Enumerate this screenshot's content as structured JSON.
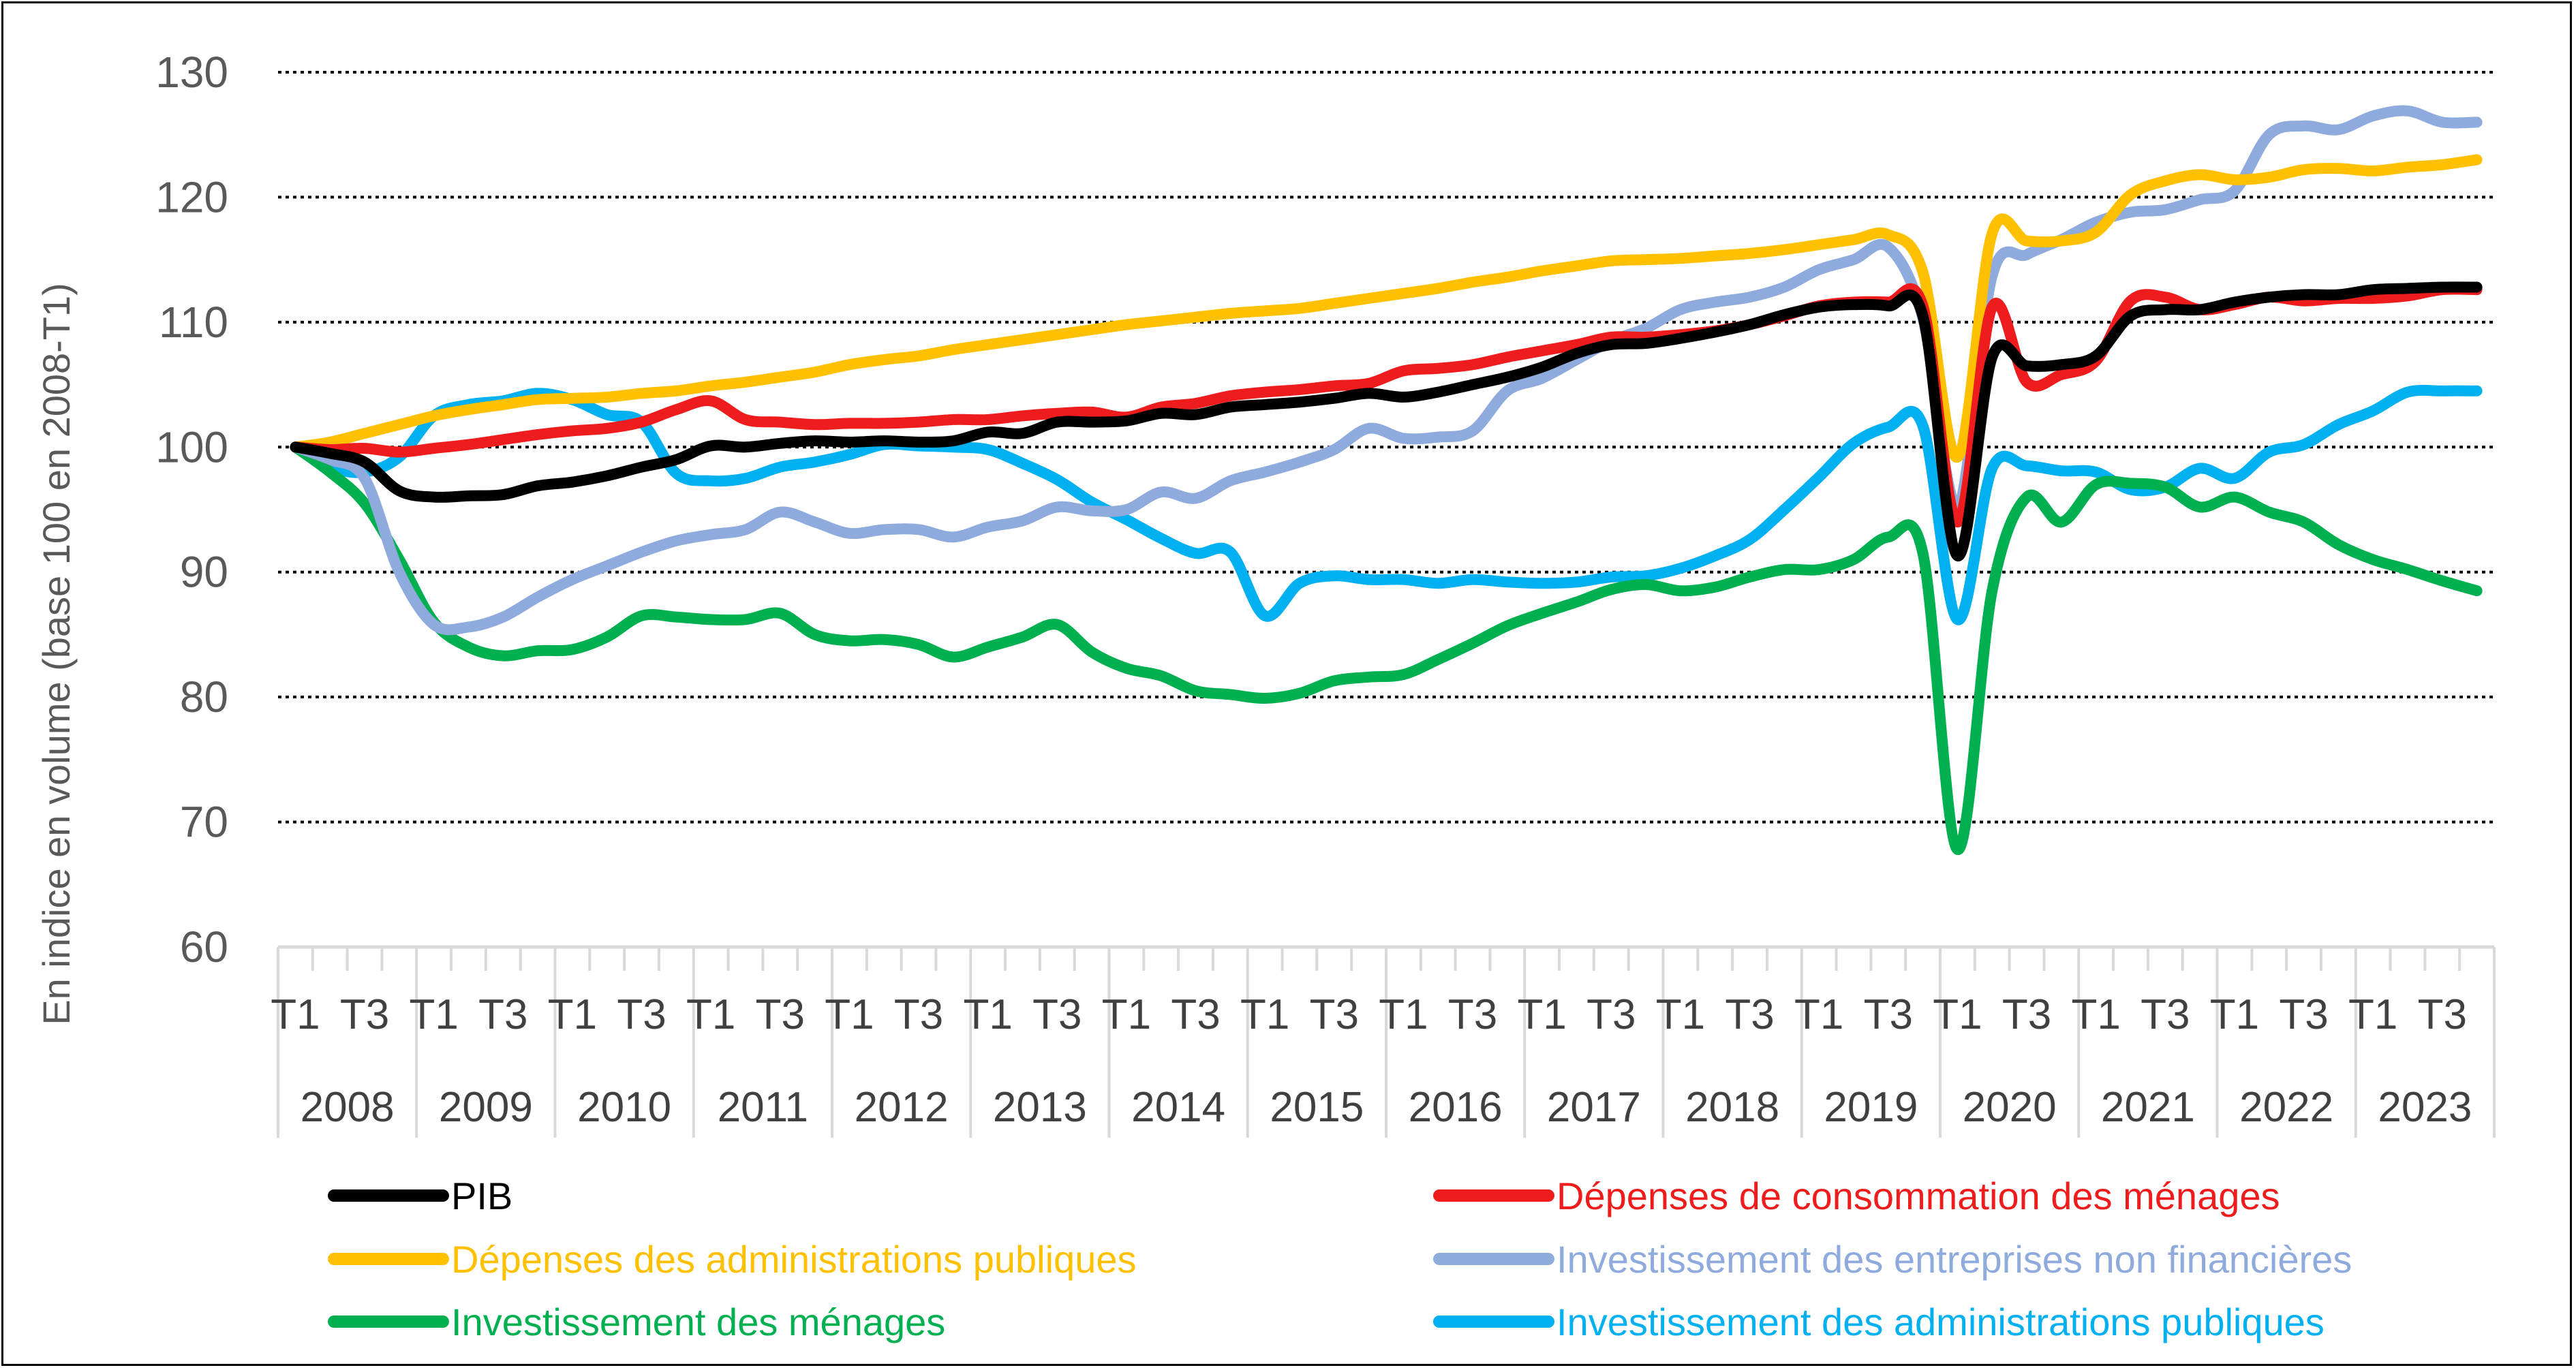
{
  "chart_data": {
    "type": "line",
    "ylabel": "En indice en volume (base 100 en 2008-T1)",
    "ylim": [
      60,
      130
    ],
    "yticks": [
      60,
      70,
      80,
      90,
      100,
      110,
      120,
      130
    ],
    "grid": "horizontal dotted",
    "legend_position": "bottom",
    "years": [
      "2008",
      "2009",
      "2010",
      "2011",
      "2012",
      "2013",
      "2014",
      "2015",
      "2016",
      "2017",
      "2018",
      "2019",
      "2020",
      "2021",
      "2022",
      "2023"
    ],
    "quarter_labels": [
      "T1",
      "T3"
    ],
    "x_quarters": [
      "2008-T1",
      "2008-T2",
      "2008-T3",
      "2008-T4",
      "2009-T1",
      "2009-T2",
      "2009-T3",
      "2009-T4",
      "2010-T1",
      "2010-T2",
      "2010-T3",
      "2010-T4",
      "2011-T1",
      "2011-T2",
      "2011-T3",
      "2011-T4",
      "2012-T1",
      "2012-T2",
      "2012-T3",
      "2012-T4",
      "2013-T1",
      "2013-T2",
      "2013-T3",
      "2013-T4",
      "2014-T1",
      "2014-T2",
      "2014-T3",
      "2014-T4",
      "2015-T1",
      "2015-T2",
      "2015-T3",
      "2015-T4",
      "2016-T1",
      "2016-T2",
      "2016-T3",
      "2016-T4",
      "2017-T1",
      "2017-T2",
      "2017-T3",
      "2017-T4",
      "2018-T1",
      "2018-T2",
      "2018-T3",
      "2018-T4",
      "2019-T1",
      "2019-T2",
      "2019-T3",
      "2019-T4",
      "2020-T1",
      "2020-T2",
      "2020-T3",
      "2020-T4",
      "2021-T1",
      "2021-T2",
      "2021-T3",
      "2021-T4",
      "2022-T1",
      "2022-T2",
      "2022-T3",
      "2022-T4",
      "2023-T1",
      "2023-T2",
      "2023-T3",
      "2023-T4"
    ],
    "series": [
      {
        "name": "PIB",
        "color": "#000000",
        "values": [
          100,
          99.5,
          98.8,
          96.5,
          96,
          96.1,
          96.2,
          96.9,
          97.2,
          97.7,
          98.4,
          99,
          100.1,
          100,
          100.3,
          100.5,
          100.4,
          100.5,
          100.4,
          100.5,
          101.2,
          101.1,
          102,
          102,
          102.1,
          102.7,
          102.6,
          103.2,
          103.4,
          103.6,
          103.9,
          104.3,
          104,
          104.4,
          105,
          105.6,
          106.4,
          107.5,
          108.2,
          108.3,
          108.7,
          109.2,
          109.8,
          110.6,
          111.2,
          111.4,
          111.3,
          110.5,
          91.3,
          107.2,
          106.5,
          106.6,
          107.3,
          110.5,
          111,
          111,
          111.6,
          112,
          112.2,
          112.2,
          112.6,
          112.7,
          112.8,
          112.8
        ]
      },
      {
        "name": "Dépenses de consommation des ménages",
        "color": "#ee1c1c",
        "values": [
          100,
          99.8,
          99.9,
          99.6,
          99.9,
          100.2,
          100.6,
          101,
          101.3,
          101.5,
          102,
          103,
          103.7,
          102.2,
          102,
          101.8,
          101.9,
          101.9,
          102,
          102.2,
          102.2,
          102.5,
          102.7,
          102.8,
          102.4,
          103.2,
          103.5,
          104.1,
          104.4,
          104.6,
          104.9,
          105.1,
          106.1,
          106.3,
          106.6,
          107.2,
          107.7,
          108.2,
          108.8,
          108.8,
          109,
          109.3,
          109.8,
          110.5,
          111.3,
          111.6,
          111.6,
          111.3,
          94,
          111.2,
          105.2,
          105.8,
          106.9,
          111.7,
          112,
          111,
          111.4,
          112,
          111.7,
          111.9,
          111.9,
          112.1,
          112.6,
          112.6
        ]
      },
      {
        "name": "Dépenses des administrations publiques",
        "color": "#ffc000",
        "values": [
          100,
          100.4,
          101.1,
          101.8,
          102.5,
          103,
          103.4,
          103.8,
          103.9,
          104,
          104.3,
          104.5,
          104.9,
          105.2,
          105.6,
          106,
          106.6,
          107,
          107.3,
          107.8,
          108.2,
          108.6,
          109,
          109.4,
          109.8,
          110.1,
          110.4,
          110.7,
          110.9,
          111.1,
          111.5,
          111.9,
          112.3,
          112.7,
          113.2,
          113.6,
          114.1,
          114.5,
          114.9,
          115,
          115.1,
          115.3,
          115.5,
          115.8,
          116.2,
          116.6,
          117,
          114,
          99.2,
          117.1,
          116.5,
          116.5,
          117.2,
          120.2,
          121.3,
          121.8,
          121.4,
          121.6,
          122.2,
          122.3,
          122.1,
          122.4,
          122.6,
          123
        ]
      },
      {
        "name": "Investissement des entreprises non financières",
        "color": "#8faadc",
        "values": [
          100,
          99,
          97.5,
          90,
          85.8,
          85.6,
          86.4,
          88,
          89.4,
          90.5,
          91.6,
          92.5,
          93,
          93.4,
          94.8,
          94,
          93.1,
          93.4,
          93.4,
          92.8,
          93.6,
          94.1,
          95.2,
          94.9,
          95,
          96.4,
          95.9,
          97.3,
          98,
          98.8,
          99.8,
          101.5,
          100.7,
          100.8,
          101.3,
          104.5,
          105.5,
          107,
          108.5,
          109.5,
          111,
          111.6,
          112,
          112.8,
          114.2,
          115,
          116,
          110.3,
          95.3,
          113.7,
          115.4,
          116.6,
          118,
          118.8,
          119,
          119.8,
          120.5,
          125,
          125.7,
          125.4,
          126.5,
          126.9,
          126,
          126
        ]
      },
      {
        "name": "Investissement des ménages",
        "color": "#00b050",
        "values": [
          100,
          98,
          95.5,
          91,
          86,
          84,
          83.3,
          83.7,
          83.8,
          84.8,
          86.5,
          86.4,
          86.2,
          86.2,
          86.7,
          85,
          84.5,
          84.6,
          84.2,
          83.2,
          84,
          84.8,
          85.8,
          83.6,
          82.3,
          81.7,
          80.5,
          80.2,
          79.9,
          80.3,
          81.3,
          81.6,
          81.8,
          83,
          84.3,
          85.7,
          86.7,
          87.6,
          88.6,
          89,
          88.5,
          88.8,
          89.6,
          90.2,
          90.2,
          91,
          92.8,
          91.5,
          67.8,
          88.5,
          96,
          94,
          97,
          97.1,
          96.8,
          95.2,
          96,
          94.8,
          94,
          92.2,
          91,
          90.2,
          89.3,
          88.5
        ]
      },
      {
        "name": "Investissement des administrations publiques",
        "color": "#00b0f0",
        "values": [
          100,
          98.4,
          98,
          99.2,
          102.5,
          103.4,
          103.7,
          104.3,
          103.8,
          102.6,
          102,
          97.9,
          97.3,
          97.5,
          98.4,
          98.8,
          99.4,
          100.2,
          100.1,
          100,
          99.8,
          98.7,
          97.4,
          95.6,
          94.2,
          92.7,
          91.5,
          91.6,
          86.5,
          89.1,
          89.7,
          89.4,
          89.4,
          89.1,
          89.4,
          89.2,
          89.1,
          89.2,
          89.6,
          89.7,
          90.3,
          91.3,
          92.6,
          95,
          97.6,
          100.3,
          101.6,
          101.7,
          86.2,
          98.3,
          98.5,
          98.1,
          98,
          96.6,
          96.8,
          98.3,
          97.5,
          99.6,
          100.2,
          101.8,
          102.9,
          104.4,
          104.5,
          104.5
        ]
      }
    ]
  }
}
